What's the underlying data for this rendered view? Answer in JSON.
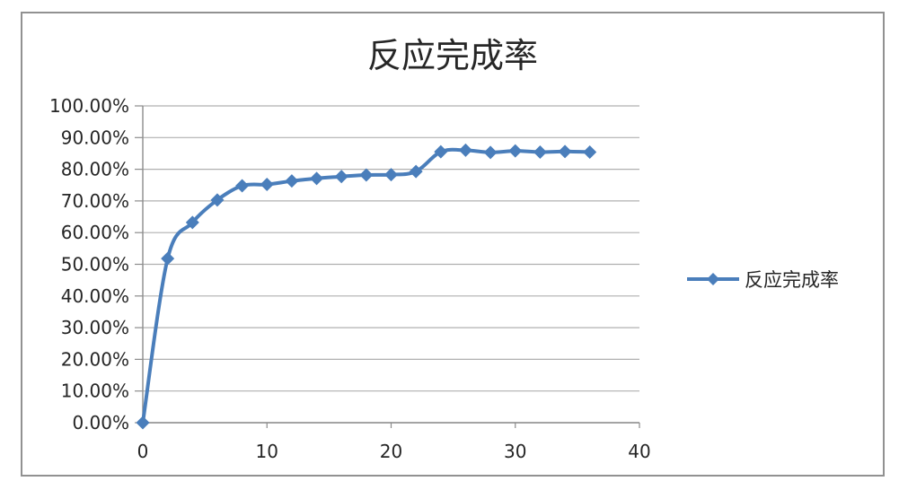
{
  "chart_data": {
    "type": "line",
    "title": "反应完成率",
    "x": [
      0,
      2,
      4,
      6,
      8,
      10,
      12,
      14,
      16,
      18,
      20,
      22,
      24,
      26,
      28,
      30,
      32,
      34,
      36
    ],
    "series": [
      {
        "name": "反应完成率",
        "values": [
          0.0,
          51.8,
          63.2,
          70.3,
          74.8,
          75.2,
          76.3,
          77.1,
          77.7,
          78.2,
          78.3,
          79.3,
          85.5,
          86.0,
          85.3,
          85.8,
          85.4,
          85.6,
          85.4
        ],
        "unit": "%",
        "color": "#4A7EBB",
        "marker": "diamond",
        "line_style": "smooth"
      }
    ],
    "xlim": [
      0,
      40
    ],
    "ylim": [
      0,
      100
    ],
    "x_ticks": [
      0,
      10,
      20,
      30,
      40
    ],
    "y_tick_labels": [
      "0.00%",
      "10.00%",
      "20.00%",
      "30.00%",
      "40.00%",
      "50.00%",
      "60.00%",
      "70.00%",
      "80.00%",
      "90.00%",
      "100.00%"
    ],
    "grid": "horizontal",
    "legend_position": "right",
    "legend_label": "反应完成率"
  },
  "colors": {
    "series_blue": "#4A7EBB",
    "gridline": "#B0B0B0",
    "axis": "#8C8C8C",
    "text": "#262626",
    "frame_border": "#919191",
    "background": "#FFFFFF"
  }
}
